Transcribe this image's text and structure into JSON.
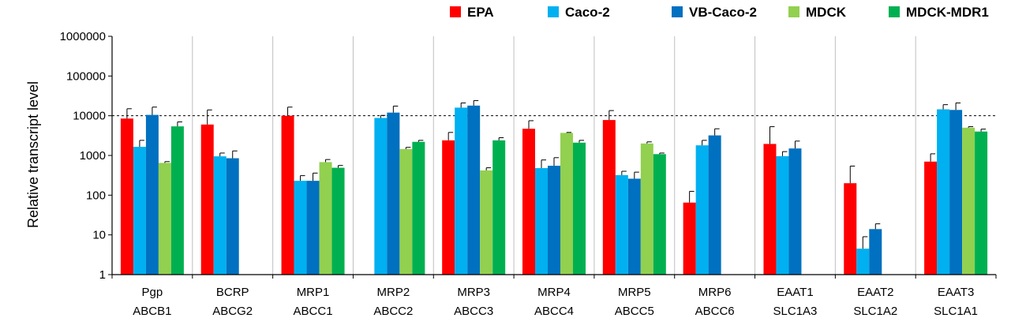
{
  "chart_data": {
    "type": "bar",
    "scale": "log",
    "ylabel": "Relative transcript level",
    "xlabel": "",
    "ylim": [
      1,
      1000000
    ],
    "yticks": [
      {
        "value": 1,
        "label": "1"
      },
      {
        "value": 10,
        "label": "10"
      },
      {
        "value": 100,
        "label": "100"
      },
      {
        "value": 1000,
        "label": "1000"
      },
      {
        "value": 10000,
        "label": "10000"
      },
      {
        "value": 100000,
        "label": "100000"
      },
      {
        "value": 1000000,
        "label": "1000000"
      }
    ],
    "reference_line": 10000,
    "legend_position": "top-right",
    "categories": [
      {
        "line1": "Pgp",
        "line2": "ABCB1"
      },
      {
        "line1": "BCRP",
        "line2": "ABCG2"
      },
      {
        "line1": "MRP1",
        "line2": "ABCC1"
      },
      {
        "line1": "MRP2",
        "line2": "ABCC2"
      },
      {
        "line1": "MRP3",
        "line2": "ABCC3"
      },
      {
        "line1": "MRP4",
        "line2": "ABCC4"
      },
      {
        "line1": "MRP5",
        "line2": "ABCC5"
      },
      {
        "line1": "MRP6",
        "line2": "ABCC6"
      },
      {
        "line1": "EAAT1",
        "line2": "SLC1A3"
      },
      {
        "line1": "EAAT2",
        "line2": "SLC1A2"
      },
      {
        "line1": "EAAT3",
        "line2": "SLC1A1"
      }
    ],
    "series": [
      {
        "name": "EPA",
        "color": "#ff0000",
        "values": [
          8500,
          6000,
          10000,
          null,
          2400,
          4700,
          7800,
          65,
          1950,
          200,
          700
        ],
        "errors": [
          15000,
          14000,
          16500,
          null,
          3800,
          7500,
          13500,
          125,
          5300,
          540,
          1100
        ]
      },
      {
        "name": "Caco-2",
        "color": "#00b0f0",
        "values": [
          1650,
          950,
          230,
          8800,
          16000,
          480,
          320,
          1800,
          960,
          4.5,
          14500
        ],
        "errors": [
          2400,
          1150,
          310,
          10200,
          21000,
          770,
          400,
          2400,
          1250,
          9,
          19000
        ]
      },
      {
        "name": "VB-Caco-2",
        "color": "#0070c0",
        "values": [
          10500,
          850,
          230,
          12000,
          18000,
          550,
          260,
          3200,
          1500,
          14,
          14000
        ],
        "errors": [
          16500,
          1300,
          360,
          17500,
          24000,
          880,
          380,
          4700,
          2300,
          19,
          21000
        ]
      },
      {
        "name": "MDCK",
        "color": "#92d050",
        "values": [
          650,
          null,
          680,
          1450,
          420,
          3700,
          2000,
          null,
          null,
          null,
          5000
        ],
        "errors": [
          700,
          null,
          790,
          1600,
          490,
          3800,
          2200,
          null,
          null,
          null,
          5300
        ]
      },
      {
        "name": "MDCK-MDR1",
        "color": "#00b050",
        "values": [
          5400,
          null,
          490,
          2200,
          2400,
          2100,
          1080,
          null,
          null,
          null,
          4000
        ],
        "errors": [
          7000,
          null,
          560,
          2400,
          2800,
          2400,
          1150,
          null,
          null,
          null,
          4600
        ]
      }
    ]
  }
}
